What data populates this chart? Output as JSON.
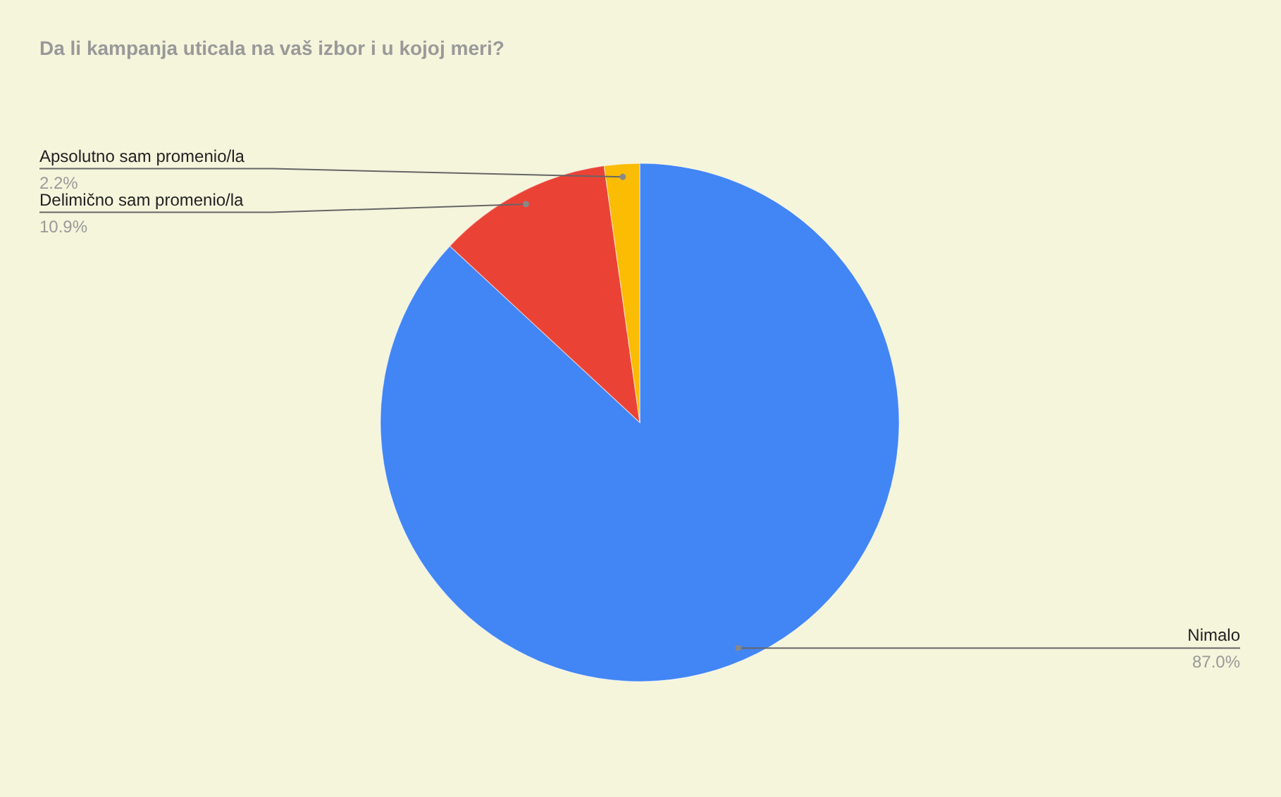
{
  "chart_data": {
    "type": "pie",
    "title": "Da li kampanja uticala na vaš izbor i u kojoj meri?",
    "categories": [
      "Nimalo",
      "Delimično sam promenio/la",
      "Apsolutno sam promenio/la"
    ],
    "values": [
      87.0,
      10.9,
      2.2
    ],
    "colors": [
      "#4285f4",
      "#ea4335",
      "#fbbc04"
    ],
    "value_labels": [
      "87.0%",
      "10.9%",
      "2.2%"
    ]
  }
}
